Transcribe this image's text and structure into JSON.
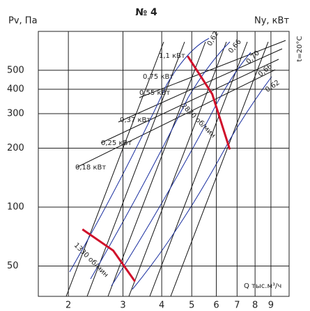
{
  "chart_data": {
    "type": "line",
    "title": "№ 4",
    "y_label": "Pv, Па",
    "y2_label": "Ny, кВт",
    "x_label": "Q тыс.м³/ч",
    "note": "t=20°C",
    "xlog": true,
    "ylog": true,
    "grid": true,
    "xlim": [
      1.6,
      10.3
    ],
    "xticks": [
      2,
      3,
      4,
      5,
      6,
      7,
      8,
      9
    ],
    "ylim": [
      35,
      790
    ],
    "yticks": [
      50,
      100,
      200,
      300,
      400,
      500
    ],
    "power_labels": [
      "0,18 кВт",
      "0,25 кВт",
      "0,37 кВт",
      "0,55 кВт",
      "0,75 кВт",
      "1,1 кВт"
    ],
    "efficiency_labels": [
      "0,62",
      "0,66",
      "0,70",
      "0,66",
      "0,62"
    ],
    "series": [
      {
        "name": "1330 об/мин",
        "color": "#d0102a",
        "x": [
          2.22,
          2.79,
          3.28
        ],
        "values": [
          77,
          60,
          41.7
        ]
      },
      {
        "name": "2870 об/мин",
        "color": "#d0102a",
        "x": [
          4.85,
          5.82,
          6.63
        ],
        "values": [
          591,
          378,
          197
        ]
      }
    ]
  }
}
